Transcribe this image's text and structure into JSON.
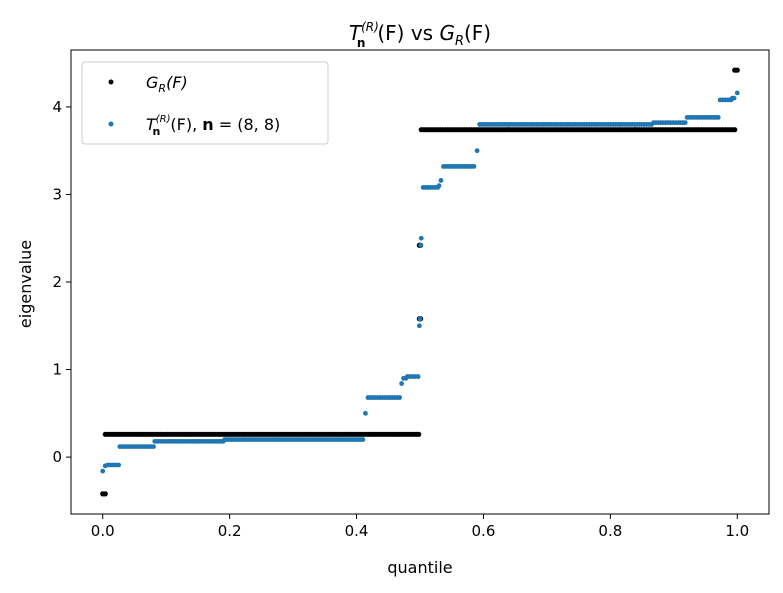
{
  "chart_data": {
    "type": "scatter",
    "title": "T_n^(R)(F) vs G_R(F)",
    "title_parts": {
      "a": "T",
      "a_sup": "(R)",
      "a_sub": "n",
      "b": "(F) vs ",
      "c": "G",
      "c_sub": "R",
      "d": "(F)"
    },
    "xlabel": "quantile",
    "ylabel": "eigenvalue",
    "xlim": [
      -0.05,
      1.05
    ],
    "ylim": [
      -0.65,
      4.65
    ],
    "xticks": [
      0.0,
      0.2,
      0.4,
      0.6,
      0.8,
      1.0
    ],
    "xtick_labels": [
      "0.0",
      "0.2",
      "0.4",
      "0.6",
      "0.8",
      "1.0"
    ],
    "yticks": [
      0,
      1,
      2,
      3,
      4
    ],
    "ytick_labels": [
      "0",
      "1",
      "2",
      "3",
      "4"
    ],
    "legend_position": "top-left",
    "series": [
      {
        "name": "G_R(F)",
        "legend_label": "G_R(F)",
        "color": "#000000",
        "segments": [
          {
            "x_start": 0.0,
            "x_end": 0.004,
            "y": -0.42
          },
          {
            "x_start": 0.004,
            "x_end": 0.498,
            "y": 0.26
          },
          {
            "x_start": 0.499,
            "x_end": 0.501,
            "y": 1.58
          },
          {
            "x_start": 0.499,
            "x_end": 0.501,
            "y": 2.42
          },
          {
            "x_start": 0.502,
            "x_end": 0.996,
            "y": 3.74
          },
          {
            "x_start": 0.996,
            "x_end": 1.0,
            "y": 4.42
          }
        ]
      },
      {
        "name": "T_n^(R)(F), n = (8, 8)",
        "legend_label": "T_n^(R)(F), n = (8,8)",
        "color": "#1f77b4",
        "segments": [
          {
            "x_start": 0.0,
            "x_end": 0.0,
            "y": -0.16
          },
          {
            "x_start": 0.004,
            "x_end": 0.0,
            "y": -0.1
          },
          {
            "x_start": 0.008,
            "x_end": 0.025,
            "y": -0.09
          },
          {
            "x_start": 0.027,
            "x_end": 0.08,
            "y": 0.12
          },
          {
            "x_start": 0.082,
            "x_end": 0.19,
            "y": 0.18
          },
          {
            "x_start": 0.192,
            "x_end": 0.41,
            "y": 0.2
          },
          {
            "x_start": 0.414,
            "x_end": 0.414,
            "y": 0.5
          },
          {
            "x_start": 0.418,
            "x_end": 0.468,
            "y": 0.68
          },
          {
            "x_start": 0.471,
            "x_end": 0.471,
            "y": 0.84
          },
          {
            "x_start": 0.474,
            "x_end": 0.478,
            "y": 0.9
          },
          {
            "x_start": 0.48,
            "x_end": 0.497,
            "y": 0.92
          },
          {
            "x_start": 0.499,
            "x_end": 0.499,
            "y": 1.5
          },
          {
            "x_start": 0.5,
            "x_end": 0.5,
            "y": 1.58
          },
          {
            "x_start": 0.501,
            "x_end": 0.501,
            "y": 2.42
          },
          {
            "x_start": 0.502,
            "x_end": 0.502,
            "y": 2.5
          },
          {
            "x_start": 0.505,
            "x_end": 0.528,
            "y": 3.08
          },
          {
            "x_start": 0.53,
            "x_end": 0.53,
            "y": 3.1
          },
          {
            "x_start": 0.533,
            "x_end": 0.533,
            "y": 3.16
          },
          {
            "x_start": 0.537,
            "x_end": 0.585,
            "y": 3.32
          },
          {
            "x_start": 0.59,
            "x_end": 0.59,
            "y": 3.5
          },
          {
            "x_start": 0.594,
            "x_end": 0.865,
            "y": 3.8
          },
          {
            "x_start": 0.868,
            "x_end": 0.918,
            "y": 3.82
          },
          {
            "x_start": 0.921,
            "x_end": 0.97,
            "y": 3.88
          },
          {
            "x_start": 0.973,
            "x_end": 0.99,
            "y": 4.08
          },
          {
            "x_start": 0.992,
            "x_end": 0.995,
            "y": 4.1
          },
          {
            "x_start": 1.0,
            "x_end": 1.0,
            "y": 4.16
          }
        ]
      }
    ]
  }
}
